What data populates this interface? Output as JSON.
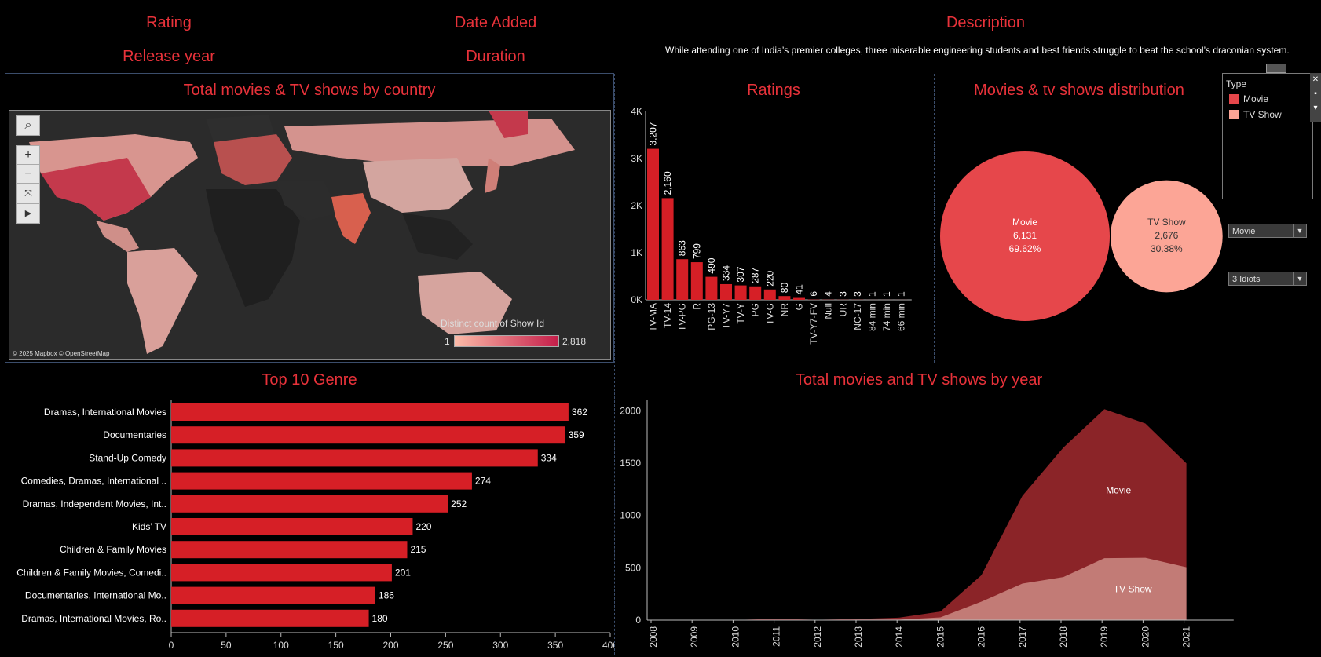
{
  "filters": {
    "rating": "Rating",
    "release_year": "Release year",
    "date_added": "Date Added",
    "duration": "Duration",
    "description_title": "Description",
    "description_text": "While attending one of India’s premier colleges, three miserable engineering students and best friends struggle to beat the school’s draconian system."
  },
  "map": {
    "title": "Total movies & TV shows by country",
    "legend_title": "Distinct count of Show Id",
    "legend_min": "1",
    "legend_max": "2,818",
    "attribution": "© 2025 Mapbox © OpenStreetMap"
  },
  "type_legend": {
    "title": "Type",
    "items": [
      {
        "label": "Movie",
        "color": "#e6474b"
      },
      {
        "label": "TV Show",
        "color": "#fca596"
      }
    ]
  },
  "dropdowns": {
    "type_value": "Movie",
    "title_value": "3 Idiots"
  },
  "colors": {
    "accent": "#e8323a",
    "bar": "#d61f26",
    "movie_area": "#8b2428",
    "tv_area": "#c27b76"
  },
  "charts": {
    "ratings_title": "Ratings",
    "distribution_title": "Movies & tv shows distribution",
    "genre_title": "Top 10 Genre",
    "year_title": "Total movies and TV shows by year"
  },
  "chart_data": [
    {
      "type": "bar",
      "title": "Ratings",
      "categories": [
        "TV-MA",
        "TV-14",
        "TV-PG",
        "R",
        "PG-13",
        "TV-Y7",
        "TV-Y",
        "PG",
        "TV-G",
        "NR",
        "G",
        "TV-Y7-FV",
        "Null",
        "UR",
        "NC-17",
        "84 min",
        "74 min",
        "66 min"
      ],
      "values": [
        3207,
        2160,
        863,
        799,
        490,
        334,
        307,
        287,
        220,
        80,
        41,
        6,
        4,
        3,
        3,
        1,
        1,
        1
      ],
      "labels": [
        "3,207",
        "2,160",
        "863",
        "799",
        "490",
        "334",
        "307",
        "287",
        "220",
        "80",
        "41",
        "6",
        "4",
        "3",
        "3",
        "1",
        "1",
        "1"
      ],
      "y_ticks": [
        "0K",
        "1K",
        "2K",
        "3K",
        "4K"
      ],
      "ylim": [
        0,
        4000
      ]
    },
    {
      "type": "pie",
      "title": "Movies & tv shows distribution",
      "series": [
        {
          "name": "Movie",
          "value": 6131,
          "value_label": "6,131",
          "percent": "69.62%"
        },
        {
          "name": "TV Show",
          "value": 2676,
          "value_label": "2,676",
          "percent": "30.38%"
        }
      ]
    },
    {
      "type": "bar",
      "title": "Top 10 Genre",
      "categories": [
        "Dramas, International Movies",
        "Documentaries",
        "Stand-Up Comedy",
        "Comedies, Dramas, International ..",
        "Dramas, Independent Movies, Int..",
        "Kids’ TV",
        "Children & Family Movies",
        "Children & Family Movies, Comedi..",
        "Documentaries, International Mo..",
        "Dramas, International Movies, Ro.."
      ],
      "values": [
        362,
        359,
        334,
        274,
        252,
        220,
        215,
        201,
        186,
        180
      ],
      "x_ticks": [
        0,
        50,
        100,
        150,
        200,
        250,
        300,
        350,
        400
      ],
      "xlim": [
        0,
        400
      ]
    },
    {
      "type": "area",
      "title": "Total movies and TV shows by year",
      "x": [
        "2008",
        "2009",
        "2010",
        "2011",
        "2012",
        "2013",
        "2014",
        "2015",
        "2016",
        "2017",
        "2018",
        "2019",
        "2020",
        "2021"
      ],
      "series": [
        {
          "name": "Movie",
          "values": [
            1,
            2,
            1,
            13,
            3,
            6,
            19,
            56,
            253,
            839,
            1237,
            1424,
            1284,
            993
          ]
        },
        {
          "name": "TV Show",
          "values": [
            1,
            0,
            0,
            0,
            0,
            5,
            5,
            26,
            176,
            349,
            412,
            592,
            595,
            505
          ]
        }
      ],
      "y_ticks": [
        0,
        500,
        1000,
        1500,
        2000
      ],
      "ylim": [
        0,
        2100
      ]
    }
  ]
}
